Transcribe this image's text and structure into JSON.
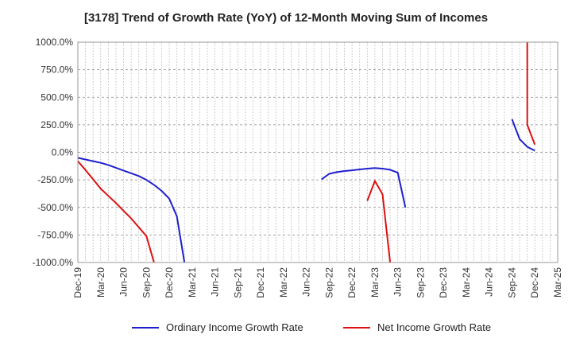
{
  "chart_data": {
    "type": "line",
    "title": "[3178]  Trend of Growth Rate (YoY) of 12-Month Moving Sum of Incomes",
    "xlabel": "",
    "ylabel": "",
    "ylim": [
      -1000,
      1000
    ],
    "yticks": [
      1000,
      750,
      500,
      250,
      0,
      -250,
      -500,
      -750,
      -1000
    ],
    "ytick_labels": [
      "1000.0%",
      "750.0%",
      "500.0%",
      "250.0%",
      "0.0%",
      "-250.0%",
      "-500.0%",
      "-750.0%",
      "-1000.0%"
    ],
    "xtick_labels": [
      "Dec-19",
      "Mar-20",
      "Jun-20",
      "Sep-20",
      "Dec-20",
      "Mar-21",
      "Jun-21",
      "Sep-21",
      "Dec-21",
      "Mar-22",
      "Jun-22",
      "Sep-22",
      "Dec-22",
      "Mar-23",
      "Jun-23",
      "Sep-23",
      "Dec-23",
      "Mar-24",
      "Jun-24",
      "Sep-24",
      "Dec-24",
      "Mar-25"
    ],
    "x_start": "Dec-19",
    "x_interval_months": 1,
    "grid": true,
    "legend_position": "bottom",
    "series": [
      {
        "name": "Ordinary Income Growth Rate",
        "color": "#1f1fcc",
        "points": [
          {
            "x": "Dec-19",
            "y": -50
          },
          {
            "x": "Jan-20",
            "y": -65
          },
          {
            "x": "Feb-20",
            "y": -80
          },
          {
            "x": "Mar-20",
            "y": -95
          },
          {
            "x": "Apr-20",
            "y": -115
          },
          {
            "x": "May-20",
            "y": -140
          },
          {
            "x": "Jun-20",
            "y": -165
          },
          {
            "x": "Jul-20",
            "y": -190
          },
          {
            "x": "Aug-20",
            "y": -215
          },
          {
            "x": "Sep-20",
            "y": -250
          },
          {
            "x": "Oct-20",
            "y": -295
          },
          {
            "x": "Nov-20",
            "y": -350
          },
          {
            "x": "Dec-20",
            "y": -420
          },
          {
            "x": "Jan-21",
            "y": -580
          },
          {
            "x": "Feb-21",
            "y": -1000
          },
          {
            "x": "Aug-22",
            "y": -245
          },
          {
            "x": "Sep-22",
            "y": -195
          },
          {
            "x": "Oct-22",
            "y": -180
          },
          {
            "x": "Nov-22",
            "y": -170
          },
          {
            "x": "Dec-22",
            "y": -163
          },
          {
            "x": "Jan-23",
            "y": -155
          },
          {
            "x": "Feb-23",
            "y": -148
          },
          {
            "x": "Mar-23",
            "y": -143
          },
          {
            "x": "Apr-23",
            "y": -148
          },
          {
            "x": "May-23",
            "y": -158
          },
          {
            "x": "Jun-23",
            "y": -185
          },
          {
            "x": "Jul-23",
            "y": -500
          },
          {
            "x": "Sep-24",
            "y": 300
          },
          {
            "x": "Oct-24",
            "y": 120
          },
          {
            "x": "Nov-24",
            "y": 50
          },
          {
            "x": "Dec-24",
            "y": 15
          }
        ]
      },
      {
        "name": "Net Income Growth Rate",
        "color": "#dd1111",
        "points": [
          {
            "x": "Dec-19",
            "y": -80
          },
          {
            "x": "Jan-20",
            "y": -160
          },
          {
            "x": "Feb-20",
            "y": -245
          },
          {
            "x": "Mar-20",
            "y": -330
          },
          {
            "x": "Apr-20",
            "y": -395
          },
          {
            "x": "May-20",
            "y": -460
          },
          {
            "x": "Jun-20",
            "y": -530
          },
          {
            "x": "Jul-20",
            "y": -600
          },
          {
            "x": "Aug-20",
            "y": -680
          },
          {
            "x": "Sep-20",
            "y": -760
          },
          {
            "x": "Oct-20",
            "y": -1000
          },
          {
            "x": "Feb-23",
            "y": -440
          },
          {
            "x": "Mar-23",
            "y": -260
          },
          {
            "x": "Apr-23",
            "y": -380
          },
          {
            "x": "May-23",
            "y": -1000
          },
          {
            "x": "Nov-24",
            "y": 1000
          },
          {
            "x": "Nov-24",
            "y": 250
          },
          {
            "x": "Dec-24",
            "y": 70
          }
        ]
      }
    ]
  }
}
